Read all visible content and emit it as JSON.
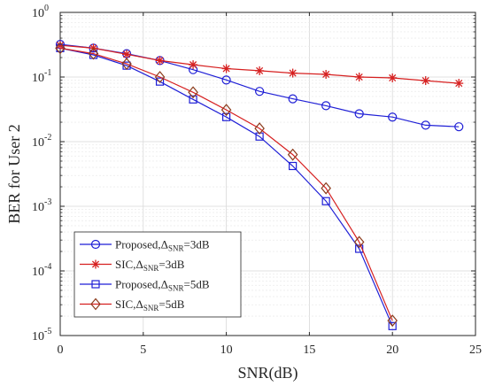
{
  "chart_data": {
    "type": "line",
    "xlabel": "SNR(dB)",
    "ylabel": "BER for User 2",
    "xlim": [
      0,
      25
    ],
    "ylim": [
      1e-05,
      1
    ],
    "yscale": "log",
    "grid": true,
    "x_ticks": [
      "0",
      "5",
      "10",
      "15",
      "20",
      "25"
    ],
    "y_ticks": [
      {
        "base": "10",
        "exp": "-5",
        "value": 1e-05
      },
      {
        "base": "10",
        "exp": "-4",
        "value": 0.0001
      },
      {
        "base": "10",
        "exp": "-3",
        "value": 0.001
      },
      {
        "base": "10",
        "exp": "-2",
        "value": 0.01
      },
      {
        "base": "10",
        "exp": "-1",
        "value": 0.1
      },
      {
        "base": "10",
        "exp": "0",
        "value": 1
      }
    ],
    "legend_position": "bottom-left",
    "series": [
      {
        "name": "Proposed,Δ",
        "name_sub": "SNR",
        "name_suffix": "=3dB",
        "color": "#1f1fd6",
        "marker": "circle",
        "x": [
          0,
          2,
          4,
          6,
          8,
          10,
          12,
          14,
          16,
          18,
          20,
          22,
          24
        ],
        "y": [
          0.32,
          0.28,
          0.23,
          0.18,
          0.13,
          0.09,
          0.06,
          0.046,
          0.036,
          0.027,
          0.024,
          0.018,
          0.017
        ]
      },
      {
        "name": "SIC,Δ",
        "name_sub": "SNR",
        "name_suffix": "=3dB",
        "color": "#d62020",
        "marker": "asterisk",
        "x": [
          0,
          2,
          4,
          6,
          8,
          10,
          12,
          14,
          16,
          18,
          20,
          22,
          24
        ],
        "y": [
          0.31,
          0.28,
          0.225,
          0.18,
          0.155,
          0.135,
          0.125,
          0.115,
          0.11,
          0.1,
          0.097,
          0.088,
          0.08
        ]
      },
      {
        "name": "Proposed,Δ",
        "name_sub": "SNR",
        "name_suffix": "=5dB",
        "color": "#1f1fd6",
        "marker": "square",
        "x": [
          0,
          2,
          4,
          6,
          8,
          10,
          12,
          14,
          16,
          18,
          20
        ],
        "y": [
          0.28,
          0.22,
          0.15,
          0.085,
          0.045,
          0.024,
          0.012,
          0.0042,
          0.0012,
          0.00022,
          1.4e-05
        ]
      },
      {
        "name": "SIC,Δ",
        "name_sub": "SNR",
        "name_suffix": "=5dB",
        "color": "#d62020",
        "marker": "diamond",
        "marker_color": "#8b3a1a",
        "x": [
          0,
          2,
          4,
          6,
          8,
          10,
          12,
          14,
          16,
          18,
          20
        ],
        "y": [
          0.28,
          0.23,
          0.16,
          0.1,
          0.058,
          0.031,
          0.016,
          0.0063,
          0.0019,
          0.00028,
          1.7e-05
        ]
      }
    ]
  }
}
